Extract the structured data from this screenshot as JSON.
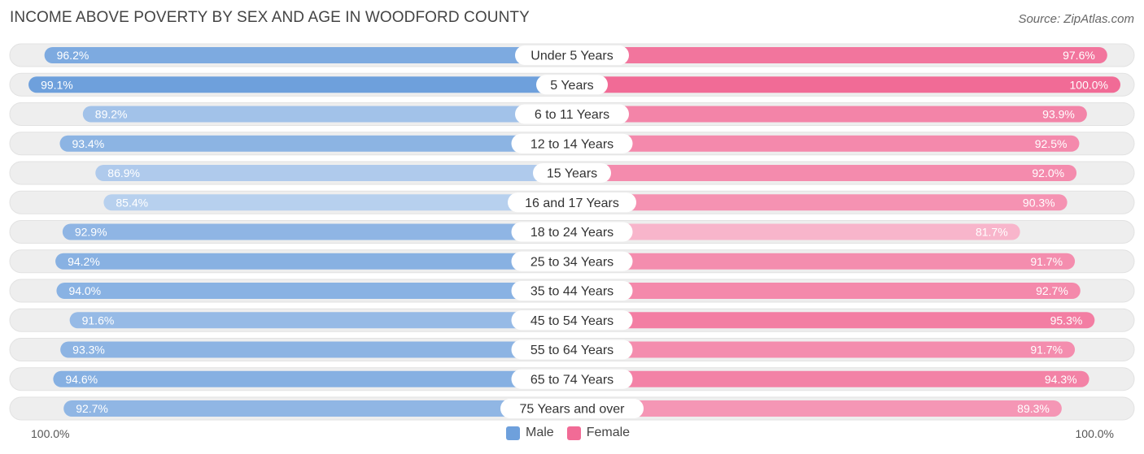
{
  "header": {
    "title": "INCOME ABOVE POVERTY BY SEX AND AGE IN WOODFORD COUNTY",
    "source": "Source: ZipAtlas.com"
  },
  "colors": {
    "male_strong": "#6ea0dc",
    "male_light": "#aecdf0",
    "female_strong": "#f16b96",
    "female_light": "#f8aac4",
    "track": "#eeeeee"
  },
  "axis": {
    "left_label": "100.0%",
    "right_label": "100.0%"
  },
  "legend": {
    "male": "Male",
    "female": "Female"
  },
  "chart_data": {
    "type": "bar",
    "orientation": "horizontal-diverging",
    "title": "INCOME ABOVE POVERTY BY SEX AND AGE IN WOODFORD COUNTY",
    "xlim": [
      0,
      100
    ],
    "categories": [
      "Under 5 Years",
      "5 Years",
      "6 to 11 Years",
      "12 to 14 Years",
      "15 Years",
      "16 and 17 Years",
      "18 to 24 Years",
      "25 to 34 Years",
      "35 to 44 Years",
      "45 to 54 Years",
      "55 to 64 Years",
      "65 to 74 Years",
      "75 Years and over"
    ],
    "series": [
      {
        "name": "Male",
        "values": [
          96.2,
          99.1,
          89.2,
          93.4,
          86.9,
          85.4,
          92.9,
          94.2,
          94.0,
          91.6,
          93.3,
          94.6,
          92.7
        ],
        "labels": [
          "96.2%",
          "99.1%",
          "89.2%",
          "93.4%",
          "86.9%",
          "85.4%",
          "92.9%",
          "94.2%",
          "94.0%",
          "91.6%",
          "93.3%",
          "94.6%",
          "92.7%"
        ]
      },
      {
        "name": "Female",
        "values": [
          97.6,
          100.0,
          93.9,
          92.5,
          92.0,
          90.3,
          81.7,
          91.7,
          92.7,
          95.3,
          91.7,
          94.3,
          89.3
        ],
        "labels": [
          "97.6%",
          "100.0%",
          "93.9%",
          "92.5%",
          "92.0%",
          "90.3%",
          "81.7%",
          "91.7%",
          "92.7%",
          "95.3%",
          "91.7%",
          "94.3%",
          "89.3%"
        ]
      }
    ],
    "legend_position": "bottom-center"
  }
}
